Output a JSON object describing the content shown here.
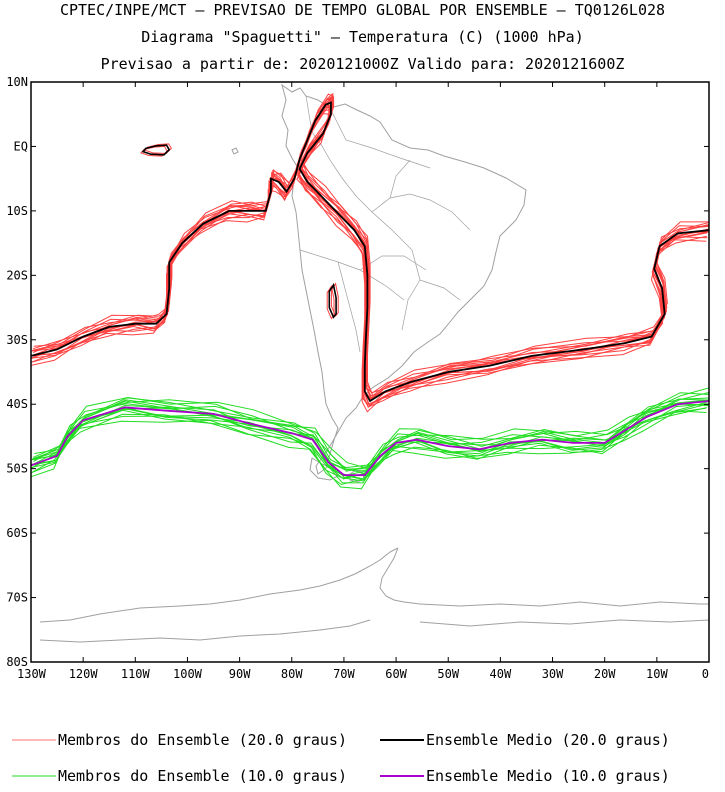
{
  "header": {
    "line1": "CPTEC/INPE/MCT — PREVISAO DE TEMPO GLOBAL POR ENSEMBLE — TQ0126L028",
    "line2": "Diagrama \"Spaguetti\" — Temperatura (C) (1000 hPa)",
    "line3": "Previsao a partir de: 2020121000Z  Valido para: 2020121600Z"
  },
  "map": {
    "lat_range": [
      -80,
      10
    ],
    "lon_range": [
      -130,
      0
    ],
    "lat_labels": [
      "10N",
      "EQ",
      "10S",
      "20S",
      "30S",
      "40S",
      "50S",
      "60S",
      "70S",
      "80S"
    ],
    "lon_labels": [
      "130W",
      "120W",
      "110W",
      "100W",
      "90W",
      "80W",
      "70W",
      "60W",
      "50W",
      "40W",
      "30W",
      "20W",
      "10W",
      "0"
    ],
    "colors": {
      "members_20": "#ff4040",
      "mean_20": "#000000",
      "members_10": "#22dd22",
      "mean_10": "#aa00cc",
      "coast": "#a0a0a0"
    },
    "isotherm_20_mean": [
      [
        -130,
        -32.5
      ],
      [
        -125,
        -31.5
      ],
      [
        -120,
        -29.5
      ],
      [
        -115,
        -28
      ],
      [
        -110,
        -27.5
      ],
      [
        -106,
        -27.5
      ],
      [
        -104,
        -26
      ],
      [
        -103.5,
        -22
      ],
      [
        -103.5,
        -18
      ],
      [
        -101,
        -15
      ],
      [
        -97,
        -12
      ],
      [
        -92,
        -10
      ],
      [
        -88,
        -10
      ],
      [
        -85,
        -10
      ],
      [
        -84,
        -7
      ],
      [
        -84,
        -5
      ],
      [
        -82.5,
        -5.5
      ],
      [
        -81,
        -7
      ],
      [
        -79.5,
        -5
      ],
      [
        -78.5,
        -2
      ],
      [
        -77,
        1
      ],
      [
        -75.5,
        4
      ],
      [
        -73.5,
        6.5
      ],
      [
        -72.5,
        6.8
      ],
      [
        -72.5,
        5
      ],
      [
        -74,
        2
      ],
      [
        -77,
        -1
      ],
      [
        -78.5,
        -3.5
      ],
      [
        -77,
        -5.5
      ],
      [
        -74,
        -8
      ],
      [
        -71,
        -10.5
      ],
      [
        -68,
        -13
      ],
      [
        -66,
        -15.5
      ],
      [
        -65.5,
        -20
      ],
      [
        -65.5,
        -25
      ],
      [
        -65.8,
        -30
      ],
      [
        -66,
        -34
      ],
      [
        -66,
        -38
      ],
      [
        -65,
        -39.5
      ],
      [
        -62,
        -38
      ],
      [
        -57,
        -36.5
      ],
      [
        -50,
        -35
      ],
      [
        -42,
        -34
      ],
      [
        -34,
        -32.5
      ],
      [
        -24,
        -31.5
      ],
      [
        -16,
        -30.5
      ],
      [
        -11,
        -29.5
      ],
      [
        -8.5,
        -26
      ],
      [
        -9,
        -22
      ],
      [
        -10.5,
        -19
      ],
      [
        -9.5,
        -15.5
      ],
      [
        -6,
        -13.5
      ],
      [
        0,
        -13
      ]
    ],
    "isotherm_10_mean": [
      [
        -130,
        -49.5
      ],
      [
        -125,
        -48
      ],
      [
        -123,
        -45
      ],
      [
        -120,
        -42.5
      ],
      [
        -112,
        -40.5
      ],
      [
        -104,
        -41
      ],
      [
        -95,
        -41.5
      ],
      [
        -88,
        -43
      ],
      [
        -80,
        -44.5
      ],
      [
        -76,
        -45.5
      ],
      [
        -73,
        -49
      ],
      [
        -70,
        -51
      ],
      [
        -66,
        -51
      ],
      [
        -63,
        -48
      ],
      [
        -60,
        -46
      ],
      [
        -56,
        -45.5
      ],
      [
        -50,
        -46.5
      ],
      [
        -44,
        -47
      ],
      [
        -38,
        -46
      ],
      [
        -32,
        -45.5
      ],
      [
        -26,
        -46
      ],
      [
        -20,
        -46
      ],
      [
        -16,
        -44
      ],
      [
        -12,
        -42
      ],
      [
        -6,
        -40
      ],
      [
        0,
        -39.5
      ]
    ],
    "isolated_20": [
      [
        [
          -108,
          -0.3
        ],
        [
          -106,
          0.1
        ],
        [
          -104,
          0.2
        ],
        [
          -103.5,
          -0.5
        ],
        [
          -104.5,
          -1.3
        ],
        [
          -107,
          -1.2
        ],
        [
          -108.5,
          -0.8
        ],
        [
          -108,
          -0.3
        ]
      ],
      [
        [
          -72,
          -21.5
        ],
        [
          -71.5,
          -23.5
        ],
        [
          -71.5,
          -26
        ],
        [
          -72,
          -26.5
        ],
        [
          -72.8,
          -25
        ],
        [
          -72.8,
          -22.5
        ],
        [
          -72,
          -21.5
        ]
      ]
    ],
    "member_offsets_20": [
      0,
      0.35,
      -0.35,
      0.7,
      -0.7,
      1.0,
      -1.0,
      0.5,
      -0.5,
      1.3,
      -1.3,
      0.2,
      -0.2,
      0.9,
      -0.9
    ],
    "member_offsets_10": [
      0,
      0.4,
      -0.4,
      0.8,
      -0.8,
      1.2,
      -1.2,
      0.6,
      -0.6,
      1.6,
      -1.6,
      0.2,
      -0.2,
      1.0,
      -1.0
    ]
  },
  "legend": {
    "items": [
      {
        "label": "Membros do Ensemble (20.0 graus)",
        "color": "#ff7070"
      },
      {
        "label": "Ensemble Medio (20.0 graus)",
        "color": "#000000"
      },
      {
        "label": "Membros do Ensemble (10.0 graus)",
        "color": "#22dd22"
      },
      {
        "label": "Ensemble Medio (10.0 graus)",
        "color": "#aa00cc"
      }
    ]
  }
}
